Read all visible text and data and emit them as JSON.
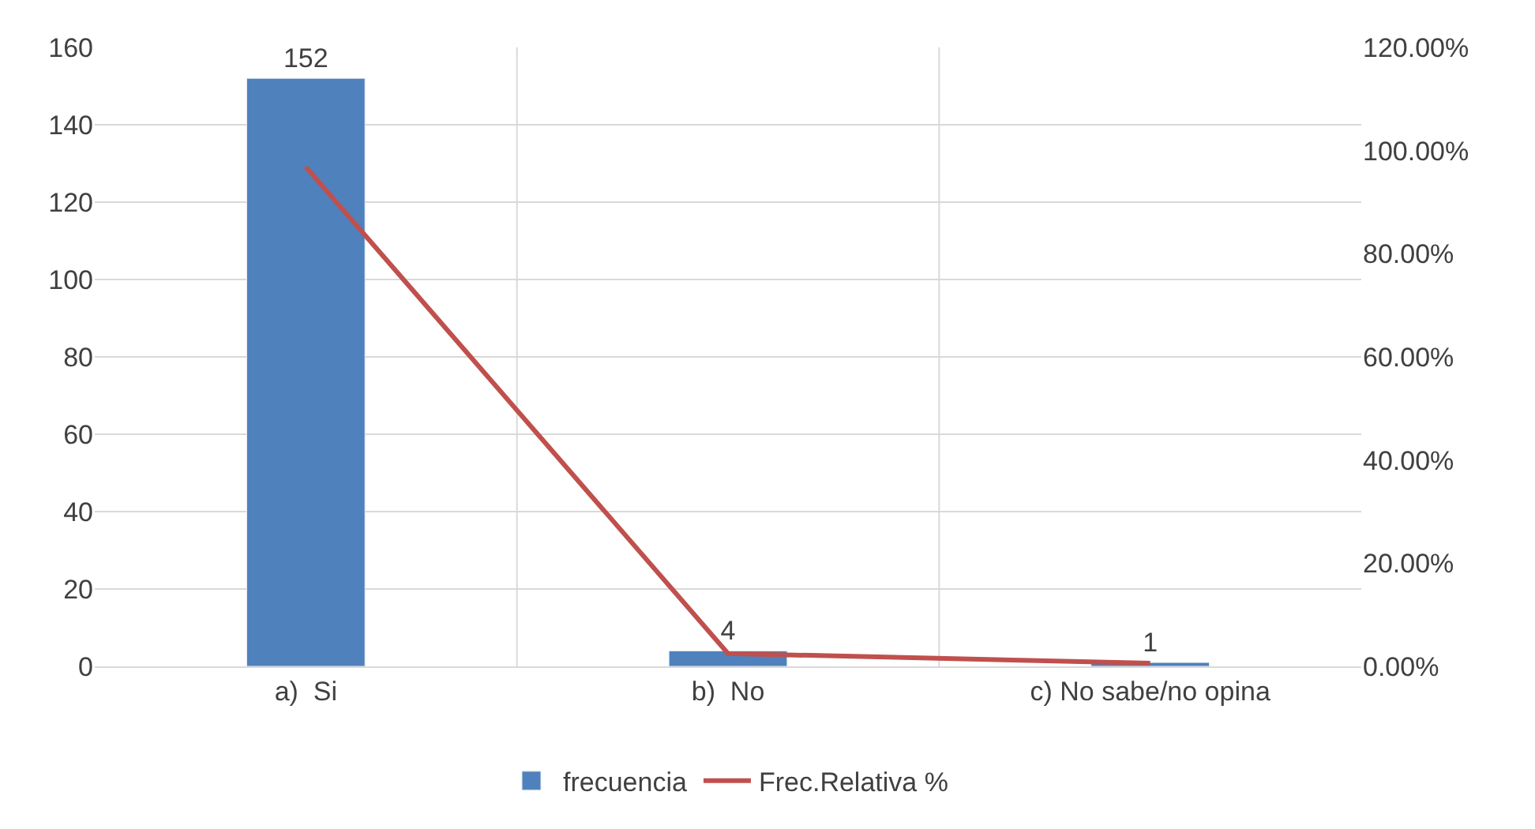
{
  "chart_data": {
    "type": "bar",
    "categories": [
      "a)  Si",
      "b)  No",
      "c) No sabe/no opina"
    ],
    "series": [
      {
        "name": "frecuencia",
        "color": "#4f81bd",
        "values": [
          152,
          4,
          1
        ],
        "value_labels": [
          "152",
          "4",
          "1"
        ]
      },
      {
        "name": "Frec.Relativa %",
        "type": "line",
        "axis": "y2",
        "color": "#c0504d",
        "values": [
          96.8,
          2.5,
          0.6
        ],
        "marker": "none",
        "line_style": "solid"
      }
    ],
    "ylim": [
      0,
      160
    ],
    "yticks": [
      0,
      20,
      40,
      60,
      80,
      100,
      120,
      140,
      160
    ],
    "y2lim": [
      0,
      120
    ],
    "y2ticks": [
      {
        "value": 0,
        "label": "0.00%"
      },
      {
        "value": 20,
        "label": "20.00%"
      },
      {
        "value": 40,
        "label": "40.00%"
      },
      {
        "value": 60,
        "label": "60.00%"
      },
      {
        "value": 80,
        "label": "80.00%"
      },
      {
        "value": 100,
        "label": "100.00%"
      },
      {
        "value": 120,
        "label": "120.00%"
      }
    ],
    "grid": true,
    "legend": "bottom"
  }
}
